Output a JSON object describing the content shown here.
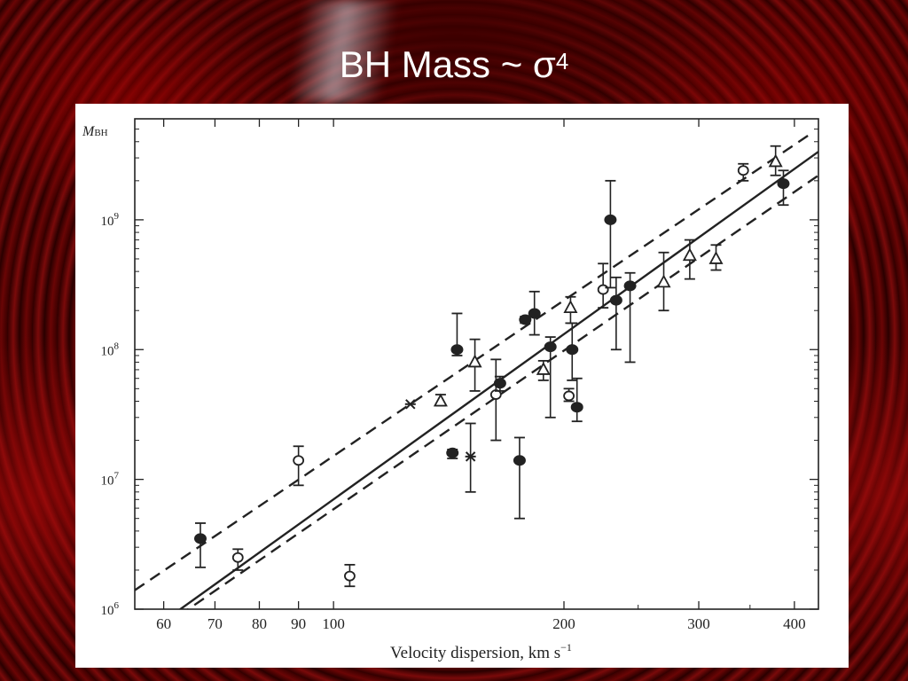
{
  "slide": {
    "title": "BH Mass ~ σ",
    "title_exponent": "4"
  },
  "chart_data": {
    "type": "scatter",
    "title": "",
    "xlabel": "Velocity dispersion, km s",
    "xlabel_exponent": "−1",
    "ylabel": "M",
    "ylabel_subscript": "BH",
    "x_scale": "log",
    "y_scale": "log",
    "xlim": [
      55,
      430
    ],
    "ylim": [
      1000000,
      6000000000
    ],
    "x_ticks": [
      {
        "value": 60,
        "label": "60"
      },
      {
        "value": 70,
        "label": "70"
      },
      {
        "value": 80,
        "label": "80"
      },
      {
        "value": 90,
        "label": "90"
      },
      {
        "value": 100,
        "label": "100"
      },
      {
        "value": 200,
        "label": "200"
      },
      {
        "value": 300,
        "label": "300"
      },
      {
        "value": 400,
        "label": "400"
      }
    ],
    "y_ticks": [
      {
        "value": 1000000,
        "mantissa": "10",
        "exponent": "6"
      },
      {
        "value": 10000000,
        "mantissa": "10",
        "exponent": "7"
      },
      {
        "value": 100000000,
        "mantissa": "10",
        "exponent": "8"
      },
      {
        "value": 1000000000,
        "mantissa": "10",
        "exponent": "9"
      }
    ],
    "grid": false,
    "legend": "none",
    "colors": {
      "ink": "#222222",
      "background": "#ffffff"
    },
    "fit_lines": [
      {
        "style": "solid",
        "points": [
          [
            55,
            560000
          ],
          [
            430,
            3350000000
          ]
        ]
      },
      {
        "style": "dashed",
        "points": [
          [
            55,
            1400000
          ],
          [
            420,
            4600000000
          ]
        ]
      },
      {
        "style": "dashed",
        "points": [
          [
            60,
            740000
          ],
          [
            430,
            2200000000
          ]
        ]
      }
    ],
    "points": [
      {
        "x": 67,
        "y": 3500000,
        "lo": 2100000,
        "hi": 4600000,
        "marker": "filled-circle"
      },
      {
        "x": 75,
        "y": 2500000,
        "lo": 2000000,
        "hi": 2900000,
        "marker": "open-circle"
      },
      {
        "x": 90,
        "y": 14000000,
        "lo": 9000000,
        "hi": 18000000,
        "marker": "open-circle"
      },
      {
        "x": 105,
        "y": 1800000,
        "lo": 1500000,
        "hi": 2200000,
        "marker": "open-circle"
      },
      {
        "x": 126,
        "y": 38000000,
        "marker": "star"
      },
      {
        "x": 138,
        "y": 40000000,
        "lo": 37000000,
        "hi": 45000000,
        "marker": "open-triangle"
      },
      {
        "x": 143,
        "y": 16000000,
        "lo": 14500000,
        "hi": 17000000,
        "marker": "filled-circle"
      },
      {
        "x": 145,
        "y": 100000000,
        "lo": 90000000,
        "hi": 190000000,
        "marker": "filled-circle"
      },
      {
        "x": 151,
        "y": 15000000,
        "lo": 8000000,
        "hi": 27000000,
        "marker": "star"
      },
      {
        "x": 153,
        "y": 80000000,
        "lo": 48000000,
        "hi": 120000000,
        "marker": "open-triangle"
      },
      {
        "x": 163,
        "y": 45000000,
        "lo": 20000000,
        "hi": 84000000,
        "marker": "open-circle"
      },
      {
        "x": 165,
        "y": 55000000,
        "lo": 48000000,
        "hi": 62000000,
        "marker": "filled-circle"
      },
      {
        "x": 175,
        "y": 14000000,
        "lo": 5000000,
        "hi": 21000000,
        "marker": "filled-circle"
      },
      {
        "x": 178,
        "y": 170000000,
        "lo": 160000000,
        "hi": 180000000,
        "marker": "filled-circle"
      },
      {
        "x": 183,
        "y": 190000000,
        "lo": 130000000,
        "hi": 280000000,
        "marker": "filled-circle"
      },
      {
        "x": 188,
        "y": 70000000,
        "lo": 58000000,
        "hi": 82000000,
        "marker": "open-triangle"
      },
      {
        "x": 192,
        "y": 105000000,
        "lo": 30000000,
        "hi": 125000000,
        "marker": "filled-circle"
      },
      {
        "x": 203,
        "y": 44000000,
        "lo": 40000000,
        "hi": 50000000,
        "marker": "open-circle"
      },
      {
        "x": 204,
        "y": 210000000,
        "lo": 160000000,
        "hi": 255000000,
        "marker": "open-triangle"
      },
      {
        "x": 205,
        "y": 100000000,
        "lo": 58000000,
        "hi": 160000000,
        "marker": "filled-circle"
      },
      {
        "x": 208,
        "y": 36000000,
        "lo": 28000000,
        "hi": 60000000,
        "marker": "filled-circle"
      },
      {
        "x": 225,
        "y": 290000000,
        "lo": 210000000,
        "hi": 460000000,
        "marker": "open-circle"
      },
      {
        "x": 230,
        "y": 1000000000,
        "lo": 300000000,
        "hi": 2000000000,
        "marker": "filled-circle"
      },
      {
        "x": 234,
        "y": 240000000,
        "lo": 100000000,
        "hi": 360000000,
        "marker": "filled-circle"
      },
      {
        "x": 244,
        "y": 310000000,
        "lo": 80000000,
        "hi": 390000000,
        "marker": "filled-circle"
      },
      {
        "x": 270,
        "y": 330000000,
        "lo": 200000000,
        "hi": 560000000,
        "marker": "open-triangle"
      },
      {
        "x": 292,
        "y": 530000000,
        "lo": 350000000,
        "hi": 700000000,
        "marker": "open-triangle"
      },
      {
        "x": 316,
        "y": 500000000,
        "lo": 410000000,
        "hi": 640000000,
        "marker": "open-triangle"
      },
      {
        "x": 343,
        "y": 2400000000,
        "lo": 2000000000,
        "hi": 2700000000,
        "marker": "open-circle"
      },
      {
        "x": 378,
        "y": 2800000000,
        "lo": 2200000000,
        "hi": 3700000000,
        "marker": "open-triangle"
      },
      {
        "x": 387,
        "y": 1900000000,
        "lo": 1300000000,
        "hi": 2400000000,
        "marker": "filled-circle"
      }
    ]
  }
}
